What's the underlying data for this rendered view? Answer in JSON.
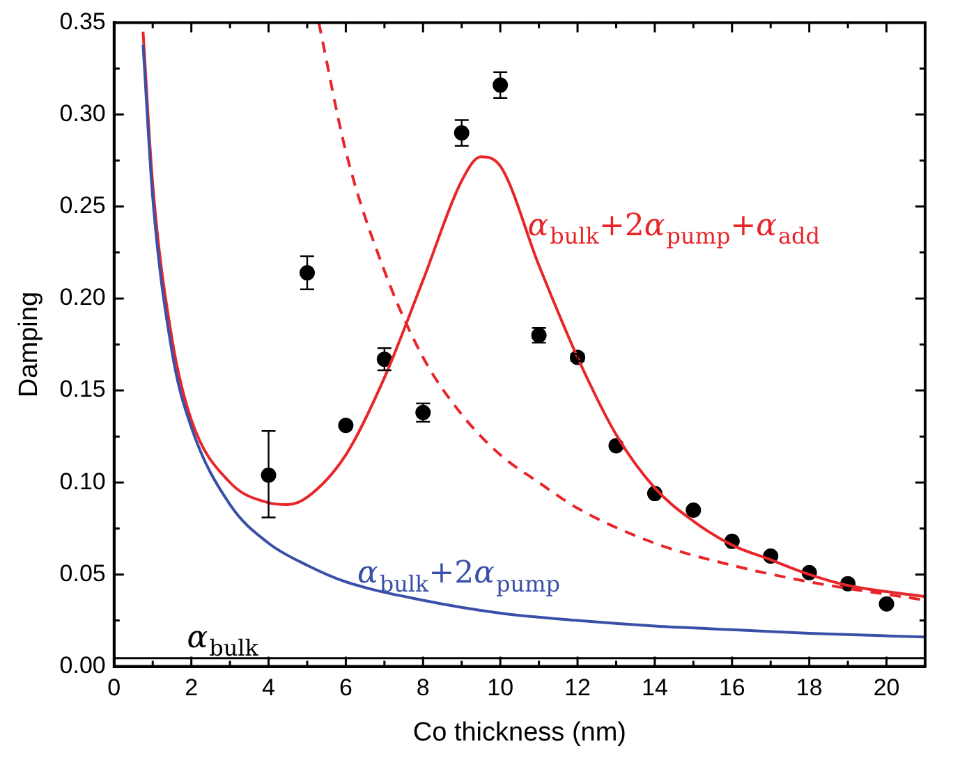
{
  "chart_data": {
    "type": "line",
    "xlabel": "Co thickness (nm)",
    "ylabel": "Damping",
    "xlim": [
      0,
      21
    ],
    "ylim": [
      0,
      0.35
    ],
    "xticks": [
      0,
      {
        "value": 1,
        "label": null
      },
      2,
      {
        "value": 3,
        "label": null
      },
      4,
      {
        "value": 5,
        "label": null
      },
      6,
      {
        "value": 7,
        "label": null
      },
      8,
      {
        "value": 9,
        "label": null
      },
      10,
      {
        "value": 11,
        "label": null
      },
      12,
      {
        "value": 13,
        "label": null
      },
      14,
      {
        "value": 15,
        "label": null
      },
      16,
      {
        "value": 17,
        "label": null
      },
      18,
      {
        "value": 19,
        "label": null
      },
      20
    ],
    "yticks": [
      {
        "value": 0,
        "label": "0.00"
      },
      {
        "value": 0.025,
        "label": null
      },
      0.05,
      {
        "value": 0.075,
        "label": null
      },
      {
        "value": 0.1,
        "label": "0.10"
      },
      {
        "value": 0.125,
        "label": null
      },
      0.15,
      {
        "value": 0.175,
        "label": null
      },
      {
        "value": 0.2,
        "label": "0.20"
      },
      {
        "value": 0.225,
        "label": null
      },
      0.25,
      {
        "value": 0.275,
        "label": null
      },
      {
        "value": 0.3,
        "label": "0.30"
      },
      {
        "value": 0.325,
        "label": null
      },
      0.35
    ],
    "grid": false,
    "legend": false,
    "ref_lines": [
      {
        "axis": "y",
        "value": 0.0045,
        "label": "α$_{bulk}$",
        "color": "#000000"
      }
    ],
    "series": [
      {
        "type": "line",
        "name": "α$_{bulk}$+2α$_{pump}$",
        "color": "#3a50a8",
        "line_style": "solid",
        "marker": "none",
        "x": [
          0.75,
          1,
          1.5,
          2,
          3,
          4,
          5,
          6,
          8,
          10,
          12,
          14,
          16,
          18,
          21
        ],
        "values": [
          0.338,
          0.255,
          0.171,
          0.13,
          0.088,
          0.067,
          0.055,
          0.046,
          0.036,
          0.029,
          0.025,
          0.022,
          0.02,
          0.018,
          0.016
        ]
      },
      {
        "type": "line",
        "name": "α$_{bulk}$+2α$_{pump}$+α$_{add}$",
        "color": "#e8262a",
        "line_style": "solid",
        "marker": "none",
        "x": [
          0.75,
          1,
          1.5,
          2,
          3,
          4,
          4.5,
          5,
          6,
          7,
          8,
          9,
          9.5,
          10,
          11,
          12,
          13,
          14,
          15,
          16,
          17,
          18,
          19,
          21
        ],
        "values": [
          0.345,
          0.262,
          0.178,
          0.134,
          0.1,
          0.089,
          0.088,
          0.092,
          0.115,
          0.157,
          0.21,
          0.264,
          0.277,
          0.272,
          0.218,
          0.168,
          0.126,
          0.097,
          0.079,
          0.066,
          0.058,
          0.05,
          0.044,
          0.038
        ]
      },
      {
        "type": "line",
        "color": "#e8262a",
        "line_style": "dashed",
        "marker": "none",
        "x": [
          5.3,
          6,
          7,
          8,
          9,
          10,
          11,
          12,
          14,
          16,
          18,
          21
        ],
        "values": [
          0.35,
          0.28,
          0.215,
          0.168,
          0.137,
          0.115,
          0.1,
          0.086,
          0.067,
          0.055,
          0.046,
          0.036
        ]
      },
      {
        "type": "scatter",
        "color": "#000000",
        "marker": "circle",
        "x": [
          4,
          5,
          6,
          7,
          8,
          9,
          10,
          11,
          12,
          13,
          14,
          15,
          16,
          17,
          18,
          19,
          20
        ],
        "values": [
          0.104,
          0.214,
          0.131,
          0.167,
          0.138,
          0.29,
          0.316,
          0.18,
          0.168,
          0.12,
          0.094,
          0.085,
          0.068,
          0.06,
          0.051,
          0.045,
          0.034
        ],
        "errors": [
          [
            0.081,
            0.128
          ],
          0.009,
          null,
          0.006,
          0.005,
          0.007,
          0.007,
          0.004,
          0.002,
          null,
          null,
          null,
          null,
          null,
          null,
          null,
          null
        ]
      }
    ]
  }
}
